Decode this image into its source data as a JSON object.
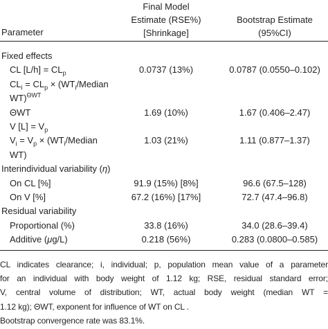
{
  "table": {
    "header": {
      "parameter": "Parameter",
      "final": [
        "Final Model",
        "Estimate (RSE%)",
        "[Shrinkage]"
      ],
      "bootstrap": [
        "Bootstrap Estimate",
        "(95%CI)"
      ]
    },
    "rows": [
      {
        "section": true,
        "label": [
          [
            "Fixed effects"
          ]
        ]
      },
      {
        "label": [
          [
            "CL [L/h] = CL",
            {
              "sub": "p"
            }
          ]
        ],
        "values": [
          "0.0737 (13%)",
          "0.0787 (0.0550–0.102)"
        ]
      },
      {
        "label": [
          [
            "CL",
            {
              "sub": "i"
            },
            " = CL",
            {
              "sub": "p"
            },
            " × (WT",
            {
              "sub": "i"
            },
            "/Median"
          ],
          [
            "WT)",
            {
              "sup": "ΘWT"
            }
          ]
        ]
      },
      {
        "label": [
          [
            "ΘWT"
          ]
        ],
        "values": [
          "1.69 (10%)",
          "1.67 (0.406–2.47)"
        ]
      },
      {
        "label": [
          [
            "V [L] = V",
            {
              "sub": "p"
            }
          ]
        ]
      },
      {
        "label": [
          [
            "V",
            {
              "sub": "i"
            },
            " = V",
            {
              "sub": "p"
            },
            " × (WT",
            {
              "sub": "i"
            },
            "/Median"
          ],
          [
            "WT)"
          ]
        ],
        "values": [
          "1.03 (21%)",
          "1.11 (0.877–1.37)"
        ]
      },
      {
        "section": true,
        "label": [
          [
            "Interindividual variability (",
            {
              "it": "η"
            },
            ")"
          ]
        ]
      },
      {
        "label": [
          [
            "On CL [%]"
          ]
        ],
        "values": [
          "91.9 (15%) [8%]",
          "96.6 (67.5–128)"
        ]
      },
      {
        "label": [
          [
            "On V [%]"
          ]
        ],
        "values": [
          "67.2 (16%) [17%]",
          "72.7 (47.4–96.8)"
        ]
      },
      {
        "section": true,
        "label": [
          [
            "Residual variability"
          ]
        ]
      },
      {
        "label": [
          [
            "Proportional (%)"
          ]
        ],
        "values": [
          "33.8 (16%)",
          "34.0 (28.6–39.4)"
        ]
      },
      {
        "label": [
          [
            "Additive (",
            {
              "it": "μ"
            },
            "g/L)"
          ]
        ],
        "values": [
          "0.218 (56%)",
          "0.283 (0.0800–0.585)"
        ]
      }
    ]
  },
  "footnotes": [
    [
      "CL indicates clearance; i, individual; p, population mean value of a parameter",
      "for an individual with body weight of 1.12 kg; RSE, residual standard error;",
      "V, central volume of distribution; WT, actual body weight (median WT =",
      "1.12 kg); ΘWT, exponent for influence of WT on CL ."
    ],
    [
      "Bootstrap convergence rate was 83.1%."
    ]
  ]
}
